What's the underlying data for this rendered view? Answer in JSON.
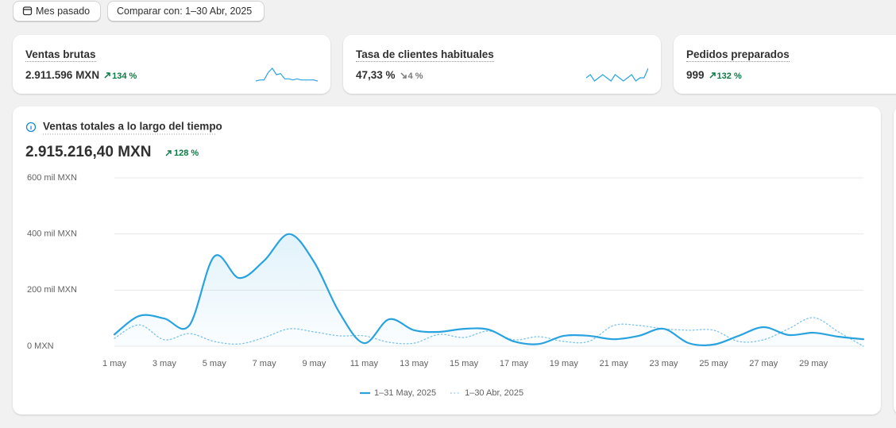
{
  "toolbar": {
    "period": "Mes pasado",
    "compare": "Comparar con: 1–30 Abr, 2025"
  },
  "cards": [
    {
      "title": "Ventas brutas",
      "value": "2.911.596 MXN",
      "change": "134 %",
      "trend": "up",
      "color": "#29a3e0",
      "sparkline": [
        2,
        3,
        3,
        10,
        14,
        8,
        9,
        4,
        4,
        3,
        4,
        3,
        3,
        3,
        3,
        2
      ]
    },
    {
      "title": "Tasa de clientes habituales",
      "value": "47,33 %",
      "change": "4 %",
      "trend": "down",
      "color": "#29a3e0",
      "sparkline": [
        6,
        7,
        5,
        6,
        7,
        6,
        5,
        7,
        6,
        5,
        6,
        7,
        5,
        6,
        6,
        9
      ]
    },
    {
      "title": "Pedidos preparados",
      "value": "999",
      "change": "132 %",
      "trend": "up"
    }
  ],
  "chart_data": {
    "type": "line",
    "title": "Ventas totales a lo largo del tiempo",
    "total": "2.915.216,40 MXN",
    "change": "128 %",
    "trend": "up",
    "categories": [
      "1 may",
      null,
      "3 may",
      null,
      "5 may",
      null,
      "7 may",
      null,
      "9 may",
      null,
      "11 may",
      null,
      "13 may",
      null,
      "15 may",
      null,
      "17 may",
      null,
      "19 may",
      null,
      "21 may",
      null,
      "23 may",
      null,
      "25 may",
      null,
      "27 may",
      null,
      "29 may",
      null,
      null
    ],
    "series": [
      {
        "name": "1–31 May, 2025",
        "color": "#29a3e0",
        "dashed": false,
        "values": [
          42000,
          108000,
          99000,
          74000,
          320000,
          243000,
          305000,
          400000,
          300000,
          122000,
          11000,
          96000,
          57000,
          51000,
          62000,
          59000,
          17000,
          8000,
          37000,
          37000,
          25000,
          37000,
          62000,
          11000,
          6000,
          37000,
          68000,
          40000,
          48000,
          34000,
          25000
        ]
      },
      {
        "name": "1–30 Abr, 2025",
        "color": "#7cc4ea",
        "dashed": true,
        "values": [
          28000,
          76000,
          23000,
          45000,
          17000,
          8000,
          31000,
          62000,
          51000,
          37000,
          37000,
          14000,
          11000,
          42000,
          31000,
          54000,
          23000,
          34000,
          17000,
          17000,
          74000,
          74000,
          62000,
          57000,
          57000,
          17000,
          23000,
          62000,
          102000,
          51000,
          0
        ]
      }
    ],
    "ylim": [
      0,
      600000
    ],
    "yticks": [
      {
        "value": 0,
        "label": "0 MXN"
      },
      {
        "value": 200000,
        "label": "200 mil MXN"
      },
      {
        "value": 400000,
        "label": "400 mil MXN"
      },
      {
        "value": 600000,
        "label": "600 mil MXN"
      }
    ],
    "grid": true
  }
}
